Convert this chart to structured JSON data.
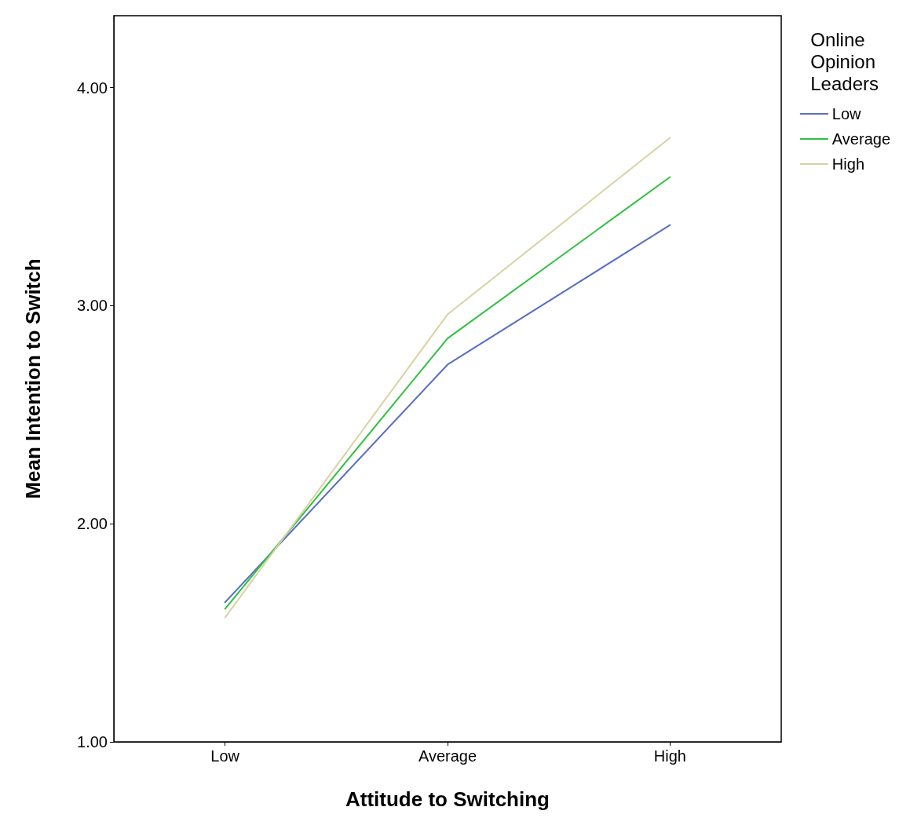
{
  "chart_data": {
    "type": "line",
    "xlabel": "Attitude to Switching",
    "ylabel": "Mean Intention to Switch",
    "legend_title": "Online Opinion Leaders",
    "categories": [
      "Low",
      "Average",
      "High"
    ],
    "series": [
      {
        "name": "Low",
        "color": "#5a6fc0",
        "values": [
          1.64,
          2.73,
          3.37
        ]
      },
      {
        "name": "Average",
        "color": "#2ec13e",
        "values": [
          1.61,
          2.85,
          3.59
        ]
      },
      {
        "name": "High",
        "color": "#d8d2a4",
        "values": [
          1.57,
          2.96,
          3.77
        ]
      }
    ],
    "ylim": [
      1,
      4.33
    ],
    "yticks": [
      {
        "value": 1,
        "label": "1.00"
      },
      {
        "value": 2,
        "label": "2.00"
      },
      {
        "value": 3,
        "label": "3.00"
      },
      {
        "value": 4,
        "label": "4.00"
      }
    ],
    "grid": false,
    "legend": "top right",
    "marker": "none",
    "line_style": "solid"
  }
}
